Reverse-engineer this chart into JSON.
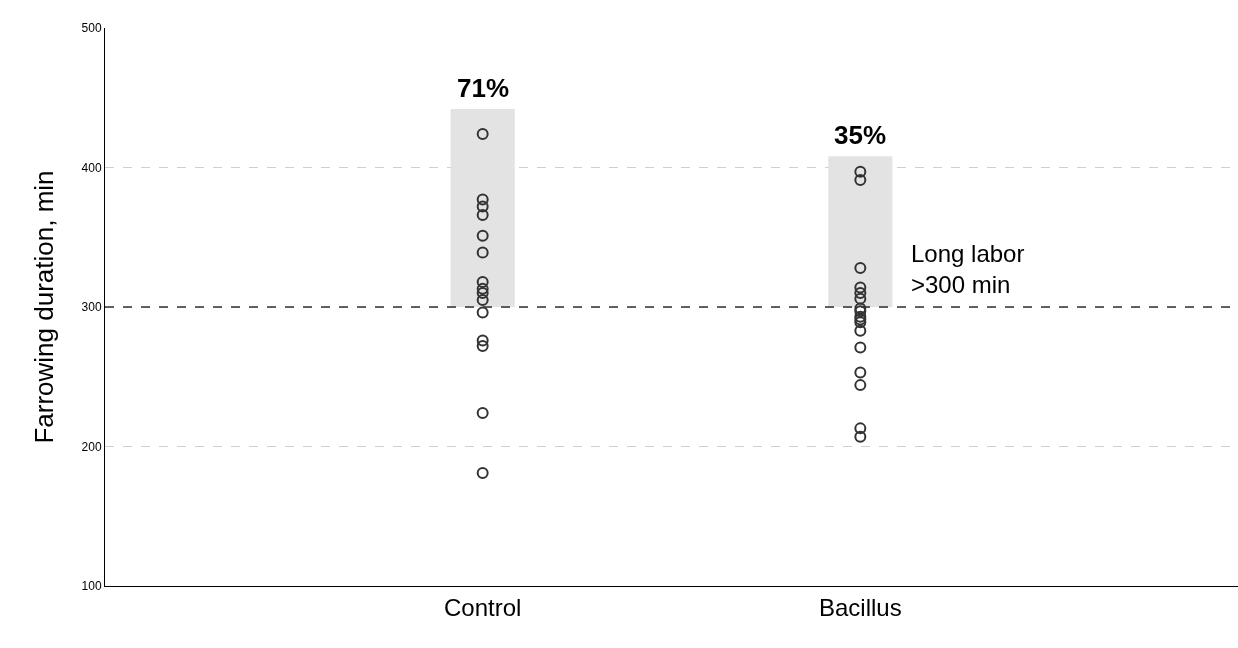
{
  "chart_data": {
    "type": "scatter",
    "categories": [
      "Control",
      "Bacillus"
    ],
    "ylabel": "Farrowing duration, min",
    "ylim": [
      100,
      500
    ],
    "yticks": [
      100,
      200,
      300,
      400,
      500
    ],
    "grid": "y",
    "marker": "circle",
    "series": [
      {
        "type": "bar",
        "color": "#e3e3e3",
        "base": [
          300,
          300
        ],
        "values": [
          142,
          108
        ]
      },
      {
        "color": "#333333",
        "x": [
          "Control",
          "Control",
          "Control",
          "Control",
          "Control",
          "Control",
          "Control",
          "Control",
          "Control",
          "Control",
          "Control",
          "Control",
          "Control",
          "Control",
          "Control",
          "Control",
          "Control"
        ],
        "values": [
          null,
          424,
          377,
          372,
          366,
          351,
          339,
          318,
          313,
          310,
          305,
          296,
          276,
          272,
          224,
          181,
          null
        ]
      },
      {
        "color": "#333333",
        "x": [
          "Bacillus",
          "Bacillus",
          "Bacillus",
          "Bacillus",
          "Bacillus",
          "Bacillus",
          "Bacillus",
          "Bacillus",
          "Bacillus",
          "Bacillus",
          "Bacillus",
          "Bacillus",
          "Bacillus",
          "Bacillus",
          "Bacillus",
          "Bacillus",
          "Bacillus"
        ],
        "values": [
          397,
          391,
          328,
          314,
          310,
          306,
          299,
          297,
          293,
          291,
          289,
          283,
          271,
          253,
          244,
          213,
          207
        ]
      }
    ],
    "annotations": [
      {
        "text": "71%",
        "x": "Control",
        "y": 442
      },
      {
        "text": "35%",
        "x": "Bacillus",
        "y": 408
      }
    ],
    "ref_lines": [
      {
        "axis": "y",
        "value": 300,
        "label": "Long labor\n>300 min",
        "color": "#333333",
        "line_style": "dashed"
      }
    ]
  }
}
